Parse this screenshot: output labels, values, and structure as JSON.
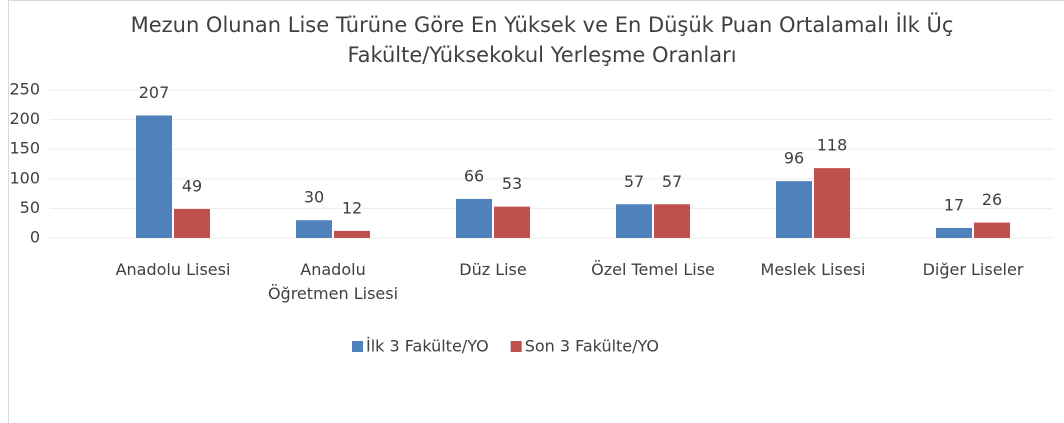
{
  "chart_data": {
    "type": "bar",
    "title": "Mezun Olunan Lise Türüne Göre En Yüksek ve En Düşük Puan Ortalamalı İlk Üç Fakülte/Yüksekokul Yerleşme Oranları",
    "categories": [
      "Anadolu Lisesi",
      "Anadolu Öğretmen Lisesi",
      "Düz Lise",
      "Özel Temel Lise",
      "Meslek Lisesi",
      "Diğer Liseler"
    ],
    "series": [
      {
        "name": "İlk 3 Fakülte/YO",
        "color": "#4f81bd",
        "values": [
          207,
          30,
          66,
          57,
          96,
          17
        ]
      },
      {
        "name": "Son 3 Fakülte/YO",
        "color": "#c0504d",
        "values": [
          49,
          12,
          53,
          57,
          118,
          26
        ]
      }
    ],
    "ylim": [
      0,
      250
    ],
    "yticks": [
      0,
      50,
      100,
      150,
      200,
      250
    ],
    "grid": true,
    "legend": "bottom"
  }
}
